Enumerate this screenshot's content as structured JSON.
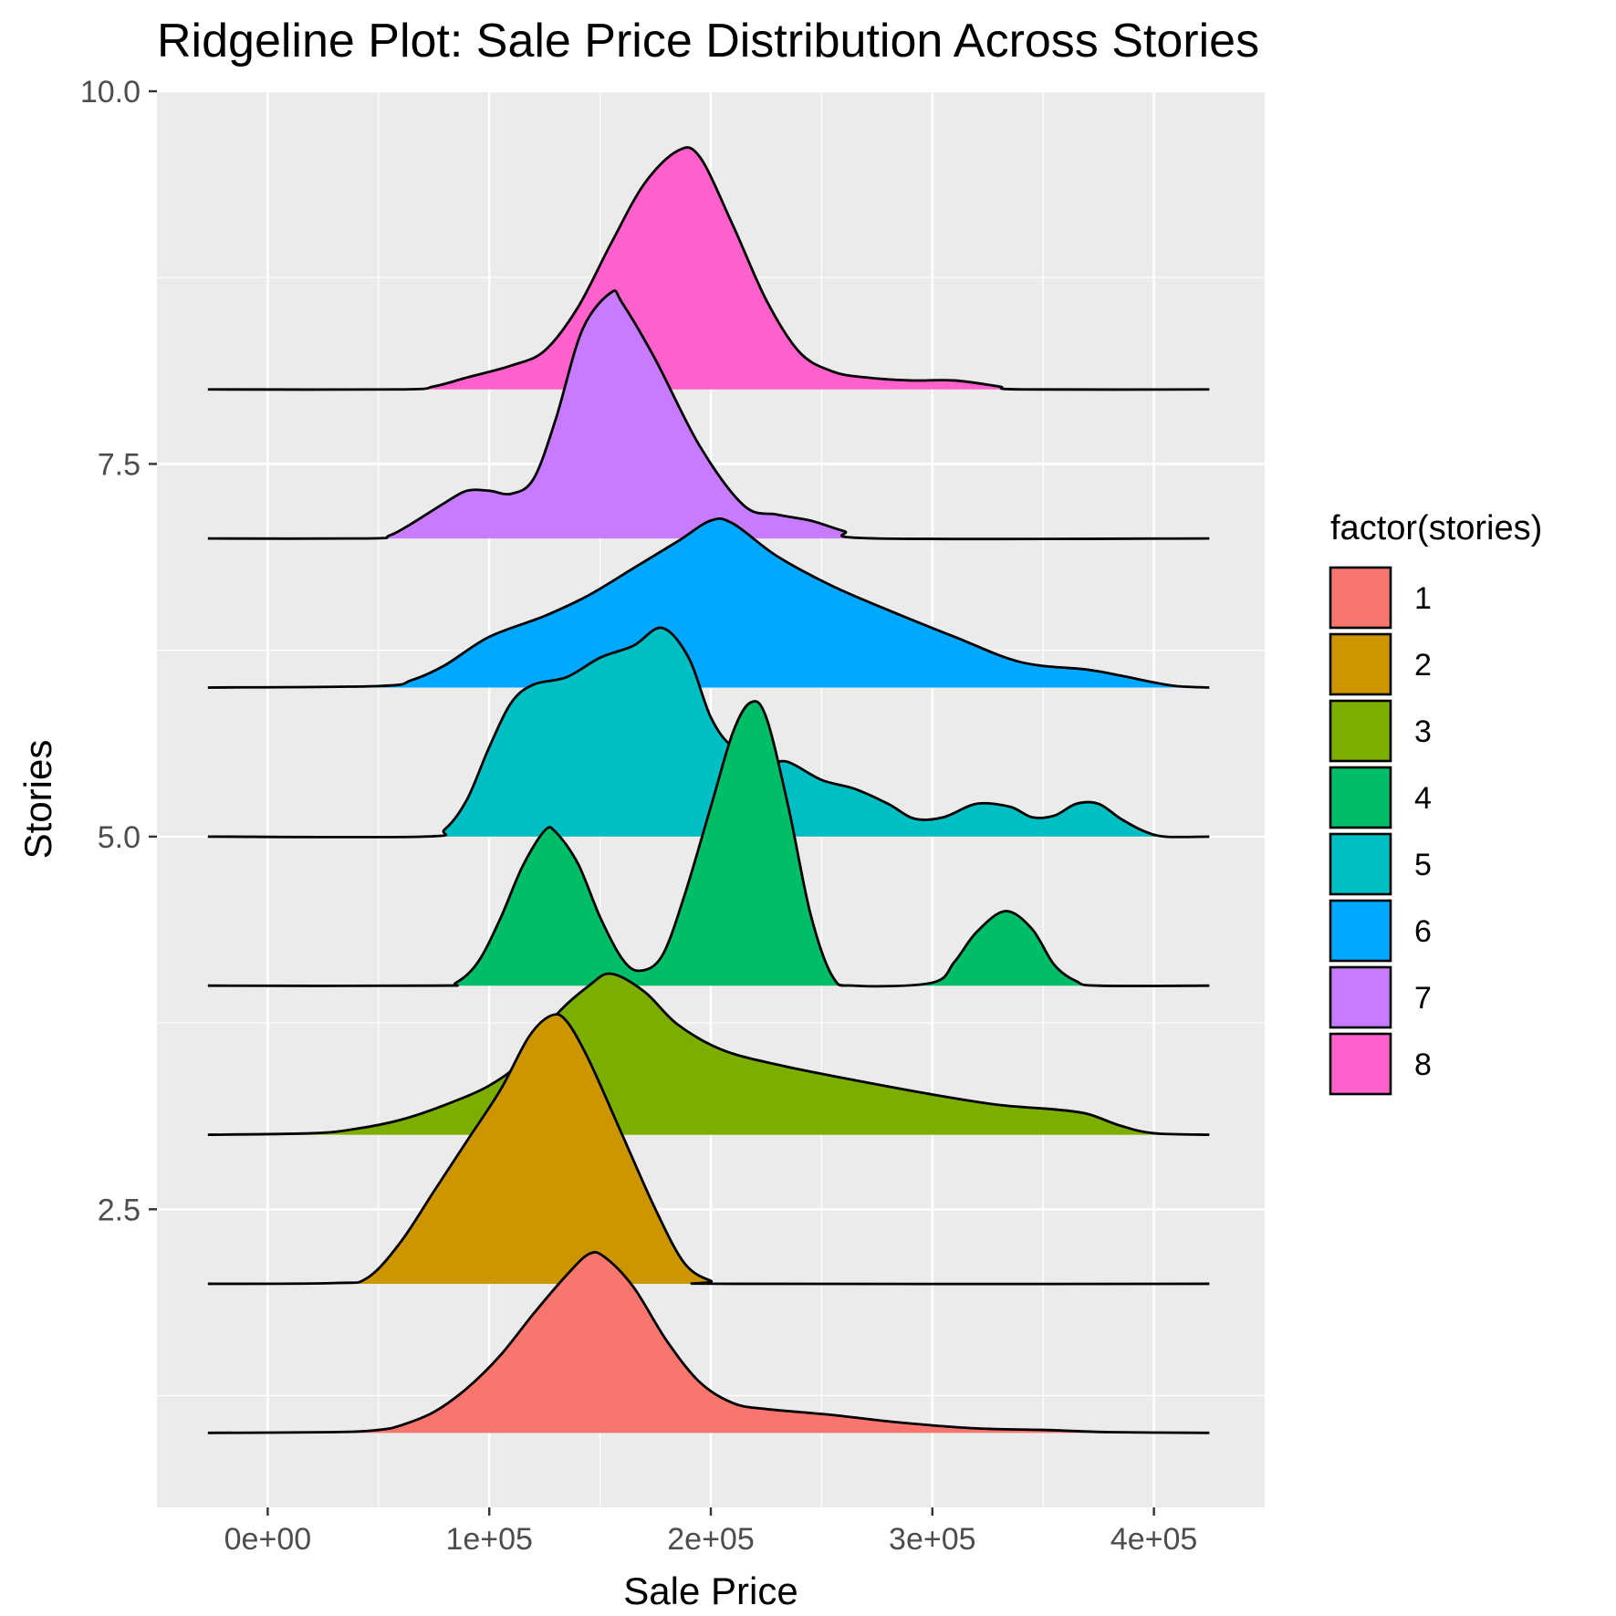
{
  "chart_data": {
    "type": "area",
    "subtype": "ridgeline",
    "title": "Ridgeline Plot: Sale Price Distribution Across Stories",
    "xlabel": "Sale Price",
    "ylabel": "Stories",
    "xlim": [
      -50000,
      450000
    ],
    "ylim": [
      0.5,
      10.0
    ],
    "x_ticks": [
      0,
      100000,
      200000,
      300000,
      400000
    ],
    "x_tick_labels": [
      "0e+00",
      "1e+05",
      "2e+05",
      "3e+05",
      "4e+05"
    ],
    "y_ticks": [
      2.5,
      5.0,
      7.5,
      10.0
    ],
    "y_tick_labels": [
      "2.5",
      "5.0",
      "7.5",
      "10.0"
    ],
    "grid": true,
    "legend": {
      "title": "factor(stories)",
      "position": "right",
      "labels": [
        "1",
        "2",
        "3",
        "4",
        "5",
        "6",
        "7",
        "8"
      ]
    },
    "series": [
      {
        "name": "1",
        "baseline": 1,
        "color": "#F8766D",
        "points": [
          [
            -27000,
            0
          ],
          [
            30000,
            0.005
          ],
          [
            50000,
            0.02
          ],
          [
            60000,
            0.05
          ],
          [
            75000,
            0.14
          ],
          [
            90000,
            0.3
          ],
          [
            105000,
            0.52
          ],
          [
            120000,
            0.8
          ],
          [
            135000,
            1.06
          ],
          [
            145000,
            1.2
          ],
          [
            152000,
            1.18
          ],
          [
            165000,
            0.98
          ],
          [
            180000,
            0.62
          ],
          [
            195000,
            0.34
          ],
          [
            210000,
            0.2
          ],
          [
            225000,
            0.16
          ],
          [
            255000,
            0.12
          ],
          [
            285000,
            0.07
          ],
          [
            320000,
            0.03
          ],
          [
            350000,
            0.02
          ],
          [
            380000,
            0.005
          ],
          [
            425000,
            0
          ]
        ]
      },
      {
        "name": "2",
        "baseline": 2,
        "color": "#CD9600",
        "points": [
          [
            -27000,
            0
          ],
          [
            30000,
            0.005
          ],
          [
            45000,
            0.04
          ],
          [
            60000,
            0.28
          ],
          [
            75000,
            0.62
          ],
          [
            90000,
            0.96
          ],
          [
            105000,
            1.3
          ],
          [
            118000,
            1.66
          ],
          [
            128000,
            1.8
          ],
          [
            135000,
            1.76
          ],
          [
            145000,
            1.5
          ],
          [
            160000,
            1.0
          ],
          [
            175000,
            0.5
          ],
          [
            188000,
            0.14
          ],
          [
            200000,
            0.02
          ],
          [
            210000,
            0
          ],
          [
            425000,
            0
          ]
        ]
      },
      {
        "name": "3",
        "baseline": 3,
        "color": "#7CAE00",
        "points": [
          [
            -27000,
            0
          ],
          [
            20000,
            0.01
          ],
          [
            40000,
            0.04
          ],
          [
            60000,
            0.1
          ],
          [
            80000,
            0.2
          ],
          [
            100000,
            0.33
          ],
          [
            115000,
            0.5
          ],
          [
            130000,
            0.8
          ],
          [
            145000,
            1.0
          ],
          [
            155000,
            1.08
          ],
          [
            170000,
            0.96
          ],
          [
            185000,
            0.74
          ],
          [
            205000,
            0.57
          ],
          [
            230000,
            0.47
          ],
          [
            260000,
            0.38
          ],
          [
            300000,
            0.27
          ],
          [
            330000,
            0.2
          ],
          [
            355000,
            0.17
          ],
          [
            370000,
            0.14
          ],
          [
            385000,
            0.06
          ],
          [
            400000,
            0.01
          ],
          [
            425000,
            0
          ]
        ]
      },
      {
        "name": "4",
        "baseline": 4,
        "color": "#00BE67",
        "points": [
          [
            -27000,
            0
          ],
          [
            75000,
            0
          ],
          [
            85000,
            0.02
          ],
          [
            95000,
            0.16
          ],
          [
            105000,
            0.45
          ],
          [
            115000,
            0.8
          ],
          [
            125000,
            1.04
          ],
          [
            130000,
            1.03
          ],
          [
            140000,
            0.82
          ],
          [
            150000,
            0.46
          ],
          [
            160000,
            0.18
          ],
          [
            168000,
            0.1
          ],
          [
            178000,
            0.2
          ],
          [
            188000,
            0.6
          ],
          [
            200000,
            1.2
          ],
          [
            210000,
            1.7
          ],
          [
            218000,
            1.9
          ],
          [
            225000,
            1.8
          ],
          [
            235000,
            1.2
          ],
          [
            245000,
            0.48
          ],
          [
            255000,
            0.06
          ],
          [
            265000,
            0
          ],
          [
            300000,
            0.02
          ],
          [
            310000,
            0.16
          ],
          [
            320000,
            0.36
          ],
          [
            333000,
            0.5
          ],
          [
            345000,
            0.38
          ],
          [
            355000,
            0.14
          ],
          [
            365000,
            0.03
          ],
          [
            375000,
            0
          ],
          [
            425000,
            0
          ]
        ]
      },
      {
        "name": "5",
        "baseline": 5,
        "color": "#00BFC4",
        "points": [
          [
            -27000,
            0
          ],
          [
            70000,
            0
          ],
          [
            80000,
            0.05
          ],
          [
            90000,
            0.25
          ],
          [
            100000,
            0.6
          ],
          [
            110000,
            0.9
          ],
          [
            120000,
            1.02
          ],
          [
            135000,
            1.07
          ],
          [
            150000,
            1.2
          ],
          [
            165000,
            1.28
          ],
          [
            178000,
            1.4
          ],
          [
            190000,
            1.2
          ],
          [
            200000,
            0.8
          ],
          [
            210000,
            0.6
          ],
          [
            225000,
            0.5
          ],
          [
            235000,
            0.5
          ],
          [
            250000,
            0.38
          ],
          [
            265000,
            0.32
          ],
          [
            280000,
            0.22
          ],
          [
            292000,
            0.12
          ],
          [
            305000,
            0.13
          ],
          [
            320000,
            0.22
          ],
          [
            335000,
            0.2
          ],
          [
            345000,
            0.13
          ],
          [
            355000,
            0.14
          ],
          [
            365000,
            0.22
          ],
          [
            375000,
            0.22
          ],
          [
            385000,
            0.12
          ],
          [
            395000,
            0.04
          ],
          [
            405000,
            0
          ],
          [
            425000,
            0
          ]
        ]
      },
      {
        "name": "6",
        "baseline": 6,
        "color": "#00A9FF",
        "points": [
          [
            -27000,
            0
          ],
          [
            50000,
            0.01
          ],
          [
            65000,
            0.05
          ],
          [
            80000,
            0.15
          ],
          [
            100000,
            0.34
          ],
          [
            125000,
            0.48
          ],
          [
            145000,
            0.62
          ],
          [
            165000,
            0.8
          ],
          [
            185000,
            0.98
          ],
          [
            200000,
            1.12
          ],
          [
            210000,
            1.1
          ],
          [
            230000,
            0.88
          ],
          [
            255000,
            0.68
          ],
          [
            280000,
            0.52
          ],
          [
            310000,
            0.34
          ],
          [
            340000,
            0.17
          ],
          [
            370000,
            0.12
          ],
          [
            385000,
            0.08
          ],
          [
            398000,
            0.04
          ],
          [
            410000,
            0.01
          ],
          [
            425000,
            0
          ]
        ]
      },
      {
        "name": "7",
        "baseline": 7,
        "color": "#C77CFF",
        "points": [
          [
            -27000,
            0
          ],
          [
            45000,
            0
          ],
          [
            55000,
            0.02
          ],
          [
            65000,
            0.1
          ],
          [
            80000,
            0.24
          ],
          [
            90000,
            0.32
          ],
          [
            100000,
            0.32
          ],
          [
            110000,
            0.3
          ],
          [
            120000,
            0.4
          ],
          [
            130000,
            0.8
          ],
          [
            142000,
            1.4
          ],
          [
            155000,
            1.65
          ],
          [
            160000,
            1.58
          ],
          [
            175000,
            1.2
          ],
          [
            195000,
            0.62
          ],
          [
            215000,
            0.22
          ],
          [
            230000,
            0.16
          ],
          [
            245000,
            0.12
          ],
          [
            260000,
            0.05
          ],
          [
            275000,
            0
          ],
          [
            425000,
            0
          ]
        ]
      },
      {
        "name": "8",
        "baseline": 8,
        "color": "#FF61CC",
        "points": [
          [
            -27000,
            0
          ],
          [
            60000,
            0
          ],
          [
            75000,
            0.02
          ],
          [
            90000,
            0.08
          ],
          [
            110000,
            0.16
          ],
          [
            125000,
            0.26
          ],
          [
            140000,
            0.55
          ],
          [
            155000,
            0.98
          ],
          [
            170000,
            1.38
          ],
          [
            185000,
            1.6
          ],
          [
            195000,
            1.56
          ],
          [
            210000,
            1.1
          ],
          [
            225000,
            0.6
          ],
          [
            240000,
            0.25
          ],
          [
            255000,
            0.12
          ],
          [
            270000,
            0.08
          ],
          [
            290000,
            0.06
          ],
          [
            310000,
            0.06
          ],
          [
            330000,
            0.02
          ],
          [
            340000,
            0
          ],
          [
            425000,
            0
          ]
        ]
      }
    ]
  }
}
